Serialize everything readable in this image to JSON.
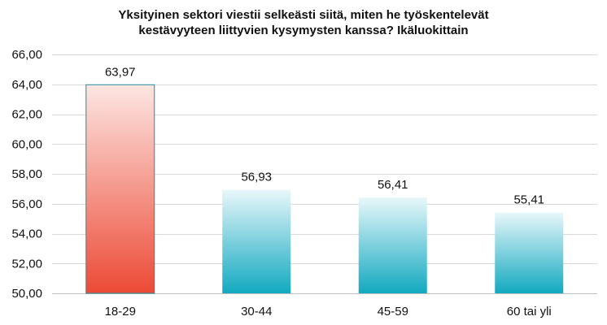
{
  "chart_data": {
    "type": "bar",
    "title_lines": [
      "Yksityinen sektori viestii selkeästi siitä, miten he työskentelevät",
      "kestävyyteen liittyvien kysymysten kanssa? Ikäluokittain"
    ],
    "categories": [
      "18-29",
      "30-44",
      "45-59",
      "60 tai yli"
    ],
    "values": [
      63.97,
      56.93,
      56.41,
      55.41
    ],
    "value_labels": [
      "63,97",
      "56,93",
      "56,41",
      "55,41"
    ],
    "ylim": [
      50,
      66
    ],
    "yticks": [
      50,
      52,
      54,
      56,
      58,
      60,
      62,
      64,
      66
    ],
    "ytick_labels": [
      "50,00",
      "52,00",
      "54,00",
      "56,00",
      "58,00",
      "60,00",
      "62,00",
      "64,00",
      "66,00"
    ],
    "xlabel": "",
    "ylabel": "",
    "grid": true,
    "legend": "none",
    "colors": {
      "highlight_top": "#fde6e2",
      "highlight_bottom": "#ec4a36",
      "highlight_edge": "#1c8fa3",
      "normal_top": "#e8f7fa",
      "normal_bottom": "#12a9c0",
      "gridline": "#d9d9d9",
      "axis": "#bfbfbf"
    },
    "highlight_index": 0
  }
}
